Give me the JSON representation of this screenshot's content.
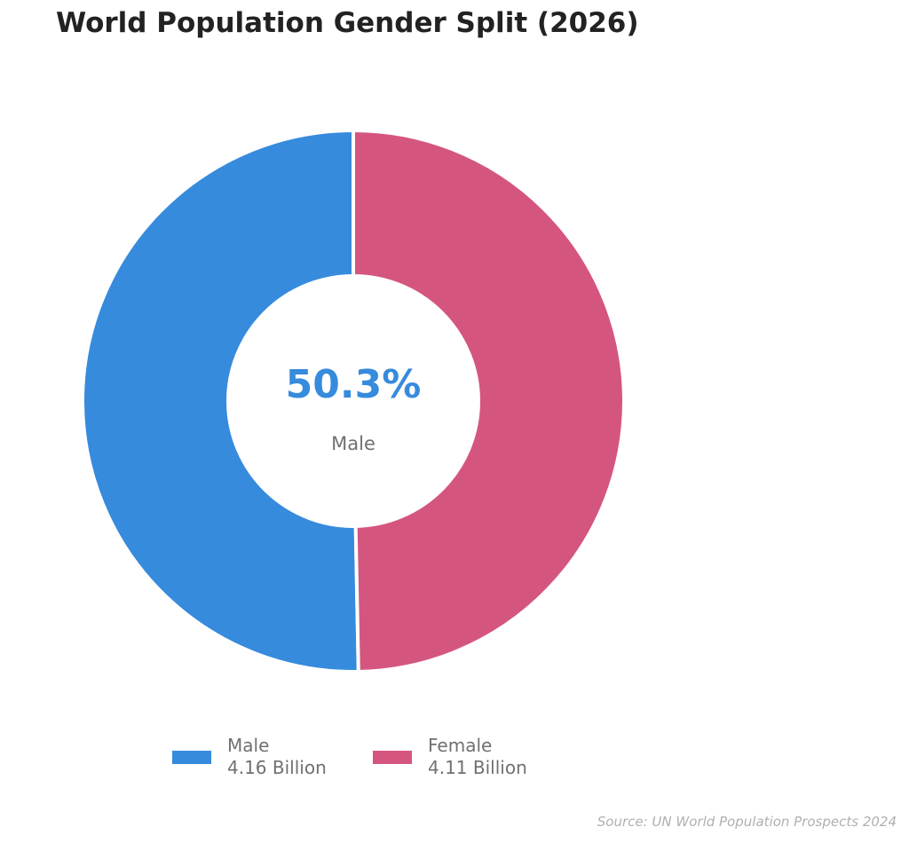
{
  "chart_data": {
    "type": "pie",
    "variant": "donut",
    "title": "World Population Gender Split (2026)",
    "center_label": {
      "value": "50.3%",
      "label": "Male"
    },
    "series": [
      {
        "name": "Male",
        "value": 4.16,
        "value_label": "4.16 Billion",
        "color": "#368BDD"
      },
      {
        "name": "Female",
        "value": 4.11,
        "value_label": "4.11 Billion",
        "color": "#D4567E"
      }
    ],
    "unit": "Billion",
    "legend_position": "bottom",
    "source": "Source: UN World Population Prospects 2024"
  }
}
